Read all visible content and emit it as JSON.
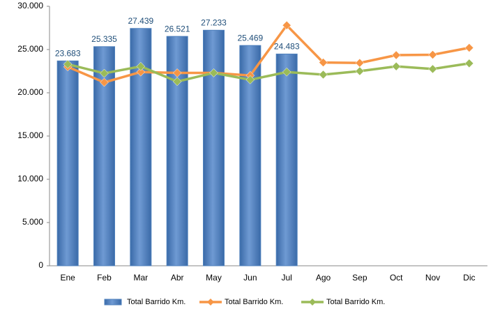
{
  "chart_data": {
    "type": "bar",
    "categories": [
      "Ene",
      "Feb",
      "Mar",
      "Abr",
      "May",
      "Jun",
      "Jul",
      "Ago",
      "Sep",
      "Oct",
      "Nov",
      "Dic"
    ],
    "series": [
      {
        "name": "Total Barrido Km.",
        "type": "bar",
        "color": "#4f81bd",
        "values": [
          23683,
          25335,
          27439,
          26521,
          27233,
          25469,
          24483,
          null,
          null,
          null,
          null,
          null
        ],
        "value_labels": [
          "23.683",
          "25.335",
          "27.439",
          "26.521",
          "27.233",
          "25.469",
          "24.483",
          null,
          null,
          null,
          null,
          null
        ]
      },
      {
        "name": "Total Barrido Km.",
        "type": "line",
        "color": "#f79646",
        "values": [
          23000,
          21200,
          22400,
          22300,
          22300,
          22000,
          27800,
          23500,
          23450,
          24350,
          24400,
          25200
        ]
      },
      {
        "name": "Total Barrido Km.",
        "type": "line",
        "color": "#9bbb59",
        "values": [
          23300,
          22250,
          23050,
          21300,
          22300,
          21500,
          22400,
          22100,
          22500,
          23050,
          22750,
          23400
        ]
      }
    ],
    "ylim": [
      0,
      30000
    ],
    "yticks": [
      0,
      {
        "value": 5000,
        "label": "5.000"
      },
      {
        "value": 10000,
        "label": "10.000"
      },
      {
        "value": 15000,
        "label": "15.000"
      },
      {
        "value": 20000,
        "label": "20.000"
      },
      {
        "value": 25000,
        "label": "25.000"
      },
      {
        "value": 30000,
        "label": "30.000"
      }
    ],
    "grid": false,
    "legend": "bottom"
  }
}
